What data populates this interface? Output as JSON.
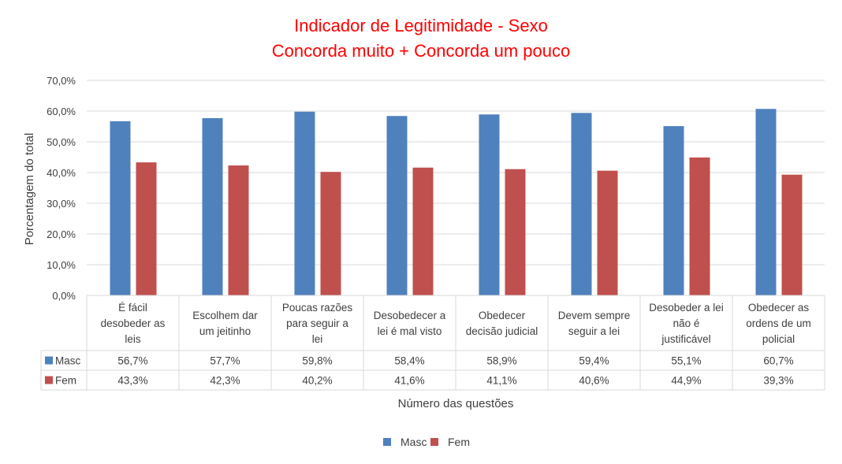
{
  "chart_data": {
    "type": "bar",
    "title_lines": [
      "Indicador de Legitimidade - Sexo",
      "Concorda muito + Concorda um pouco"
    ],
    "ylabel": "Porcentagem do total",
    "xlabel": "Número das questões",
    "ylim": [
      0,
      70
    ],
    "yticks": [
      0,
      10,
      20,
      30,
      40,
      50,
      60,
      70
    ],
    "ytick_labels": [
      "0,0%",
      "10,0%",
      "20,0%",
      "30,0%",
      "40,0%",
      "50,0%",
      "60,0%",
      "70,0%"
    ],
    "grid": true,
    "legend_position": "bottom",
    "categories": [
      [
        "É fácil",
        "desobeder as",
        "leis"
      ],
      [
        "Escolhem dar",
        "um jeitinho"
      ],
      [
        "Poucas razões",
        "para seguir a",
        "lei"
      ],
      [
        "Desobedecer a",
        "lei é mal visto"
      ],
      [
        "Obedecer",
        "decisão judicial"
      ],
      [
        "Devem sempre",
        "seguir a lei"
      ],
      [
        "Desobeder a lei",
        "não é",
        "justificável"
      ],
      [
        "Obedecer as",
        "ordens de um",
        "policial"
      ]
    ],
    "series": [
      {
        "name": "Masc",
        "color": "#4f81bd",
        "values": [
          56.7,
          57.7,
          59.8,
          58.4,
          58.9,
          59.4,
          55.1,
          60.7
        ],
        "labels": [
          "56,7%",
          "57,7%",
          "59,8%",
          "58,4%",
          "58,9%",
          "59,4%",
          "55,1%",
          "60,7%"
        ]
      },
      {
        "name": "Fem",
        "color": "#c0504d",
        "values": [
          43.3,
          42.3,
          40.2,
          41.6,
          41.1,
          40.6,
          44.9,
          39.3
        ],
        "labels": [
          "43,3%",
          "42,3%",
          "40,2%",
          "41,6%",
          "41,1%",
          "40,6%",
          "44,9%",
          "39,3%"
        ]
      }
    ]
  }
}
